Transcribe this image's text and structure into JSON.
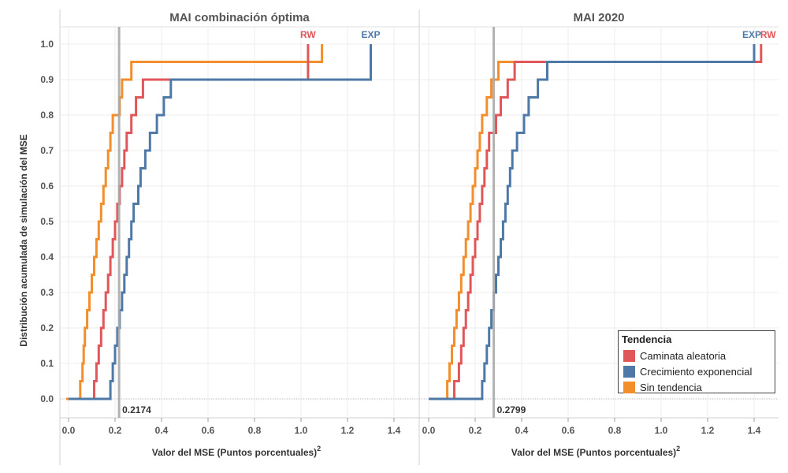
{
  "chart_data": {
    "type": "line",
    "step": true,
    "ylabel": "Distribución acumulada de simulación del MSE",
    "ylim": [
      0.0,
      1.0
    ],
    "yticks": [
      "0.0",
      "0.1",
      "0.2",
      "0.3",
      "0.4",
      "0.5",
      "0.6",
      "0.7",
      "0.8",
      "0.9",
      "1.0"
    ],
    "xticks": [
      "0.0",
      "0.2",
      "0.4",
      "0.6",
      "0.8",
      "1.0",
      "1.2",
      "1.4"
    ],
    "xlim": [
      -0.03,
      1.5
    ],
    "legend": {
      "title": "Tendencia",
      "items": [
        {
          "name": "Caminata aleatoria",
          "color": "#e15759"
        },
        {
          "name": "Crecimiento exponencial",
          "color": "#4e79a7"
        },
        {
          "name": "Sin tendencia",
          "color": "#f28e2b"
        }
      ]
    },
    "panels": [
      {
        "title": "MAI combinación óptima",
        "xlabel": "Valor del MSE (Puntos porcentuales)",
        "xlabel_sup": "2",
        "reference_value": 0.2174,
        "reference_label": "0.2174",
        "series": [
          {
            "name": "Sin tendencia",
            "short": "",
            "color": "#f28e2b",
            "x": [
              -0.01,
              0.04,
              0.05,
              0.06,
              0.065,
              0.07,
              0.08,
              0.09,
              0.1,
              0.11,
              0.12,
              0.13,
              0.14,
              0.15,
              0.16,
              0.17,
              0.18,
              0.19,
              0.22,
              0.23,
              0.27,
              0.29,
              0.35,
              1.09
            ],
            "y": [
              0.0,
              0.0,
              0.05,
              0.1,
              0.15,
              0.2,
              0.25,
              0.3,
              0.35,
              0.4,
              0.45,
              0.5,
              0.55,
              0.6,
              0.65,
              0.7,
              0.75,
              0.8,
              0.85,
              0.9,
              0.95,
              0.95,
              0.95,
              1.0
            ]
          },
          {
            "name": "Caminata aleatoria",
            "short": "RW",
            "color": "#e15759",
            "x": [
              0.0,
              0.09,
              0.11,
              0.12,
              0.13,
              0.14,
              0.15,
              0.16,
              0.17,
              0.18,
              0.19,
              0.2,
              0.21,
              0.22,
              0.23,
              0.24,
              0.25,
              0.27,
              0.29,
              0.32,
              1.03
            ],
            "y": [
              0.0,
              0.0,
              0.05,
              0.1,
              0.15,
              0.2,
              0.25,
              0.3,
              0.35,
              0.4,
              0.45,
              0.5,
              0.55,
              0.6,
              0.65,
              0.7,
              0.75,
              0.8,
              0.85,
              0.9,
              1.0
            ]
          },
          {
            "name": "Crecimiento exponencial",
            "short": "EXP",
            "color": "#4e79a7",
            "x": [
              0.0,
              0.14,
              0.18,
              0.19,
              0.2,
              0.21,
              0.22,
              0.23,
              0.24,
              0.25,
              0.26,
              0.27,
              0.28,
              0.3,
              0.31,
              0.33,
              0.35,
              0.38,
              0.41,
              0.44,
              1.3
            ],
            "y": [
              0.0,
              0.0,
              0.05,
              0.1,
              0.15,
              0.2,
              0.25,
              0.3,
              0.35,
              0.4,
              0.45,
              0.5,
              0.55,
              0.6,
              0.65,
              0.7,
              0.75,
              0.8,
              0.85,
              0.9,
              1.0
            ]
          }
        ]
      },
      {
        "title": "MAI 2020",
        "xlabel": "Valor del MSE (Puntos porcentuales)",
        "xlabel_sup": "2",
        "reference_value": 0.2799,
        "reference_label": "0.2799",
        "series": [
          {
            "name": "Sin tendencia",
            "short": "",
            "color": "#f28e2b",
            "x": [
              0.0,
              0.07,
              0.08,
              0.09,
              0.1,
              0.11,
              0.12,
              0.13,
              0.14,
              0.15,
              0.16,
              0.17,
              0.18,
              0.19,
              0.2,
              0.21,
              0.22,
              0.23,
              0.25,
              0.27,
              0.3,
              0.34,
              0.38,
              1.0
            ],
            "y": [
              0.0,
              0.0,
              0.05,
              0.1,
              0.15,
              0.2,
              0.25,
              0.3,
              0.35,
              0.4,
              0.45,
              0.5,
              0.55,
              0.6,
              0.65,
              0.7,
              0.75,
              0.8,
              0.85,
              0.9,
              0.95,
              0.95,
              0.95,
              0.95
            ]
          },
          {
            "name": "Caminata aleatoria",
            "short": "RW",
            "color": "#e15759",
            "x": [
              0.0,
              0.1,
              0.11,
              0.13,
              0.14,
              0.15,
              0.16,
              0.17,
              0.18,
              0.19,
              0.2,
              0.21,
              0.22,
              0.23,
              0.24,
              0.25,
              0.26,
              0.29,
              0.31,
              0.34,
              0.37,
              0.4,
              1.43
            ],
            "y": [
              0.0,
              0.0,
              0.05,
              0.1,
              0.15,
              0.2,
              0.25,
              0.3,
              0.35,
              0.4,
              0.45,
              0.5,
              0.55,
              0.6,
              0.65,
              0.7,
              0.75,
              0.8,
              0.85,
              0.9,
              0.95,
              0.95,
              1.0
            ]
          },
          {
            "name": "Crecimiento exponencial",
            "short": "EXP",
            "color": "#4e79a7",
            "x": [
              0.0,
              0.18,
              0.23,
              0.24,
              0.25,
              0.26,
              0.27,
              0.28,
              0.29,
              0.3,
              0.31,
              0.32,
              0.33,
              0.34,
              0.35,
              0.36,
              0.38,
              0.41,
              0.43,
              0.47,
              0.51,
              0.55,
              1.4
            ],
            "y": [
              0.0,
              0.0,
              0.05,
              0.1,
              0.15,
              0.2,
              0.25,
              0.3,
              0.35,
              0.4,
              0.45,
              0.5,
              0.55,
              0.6,
              0.65,
              0.7,
              0.75,
              0.8,
              0.85,
              0.9,
              0.95,
              0.95,
              1.0
            ]
          }
        ]
      }
    ]
  }
}
